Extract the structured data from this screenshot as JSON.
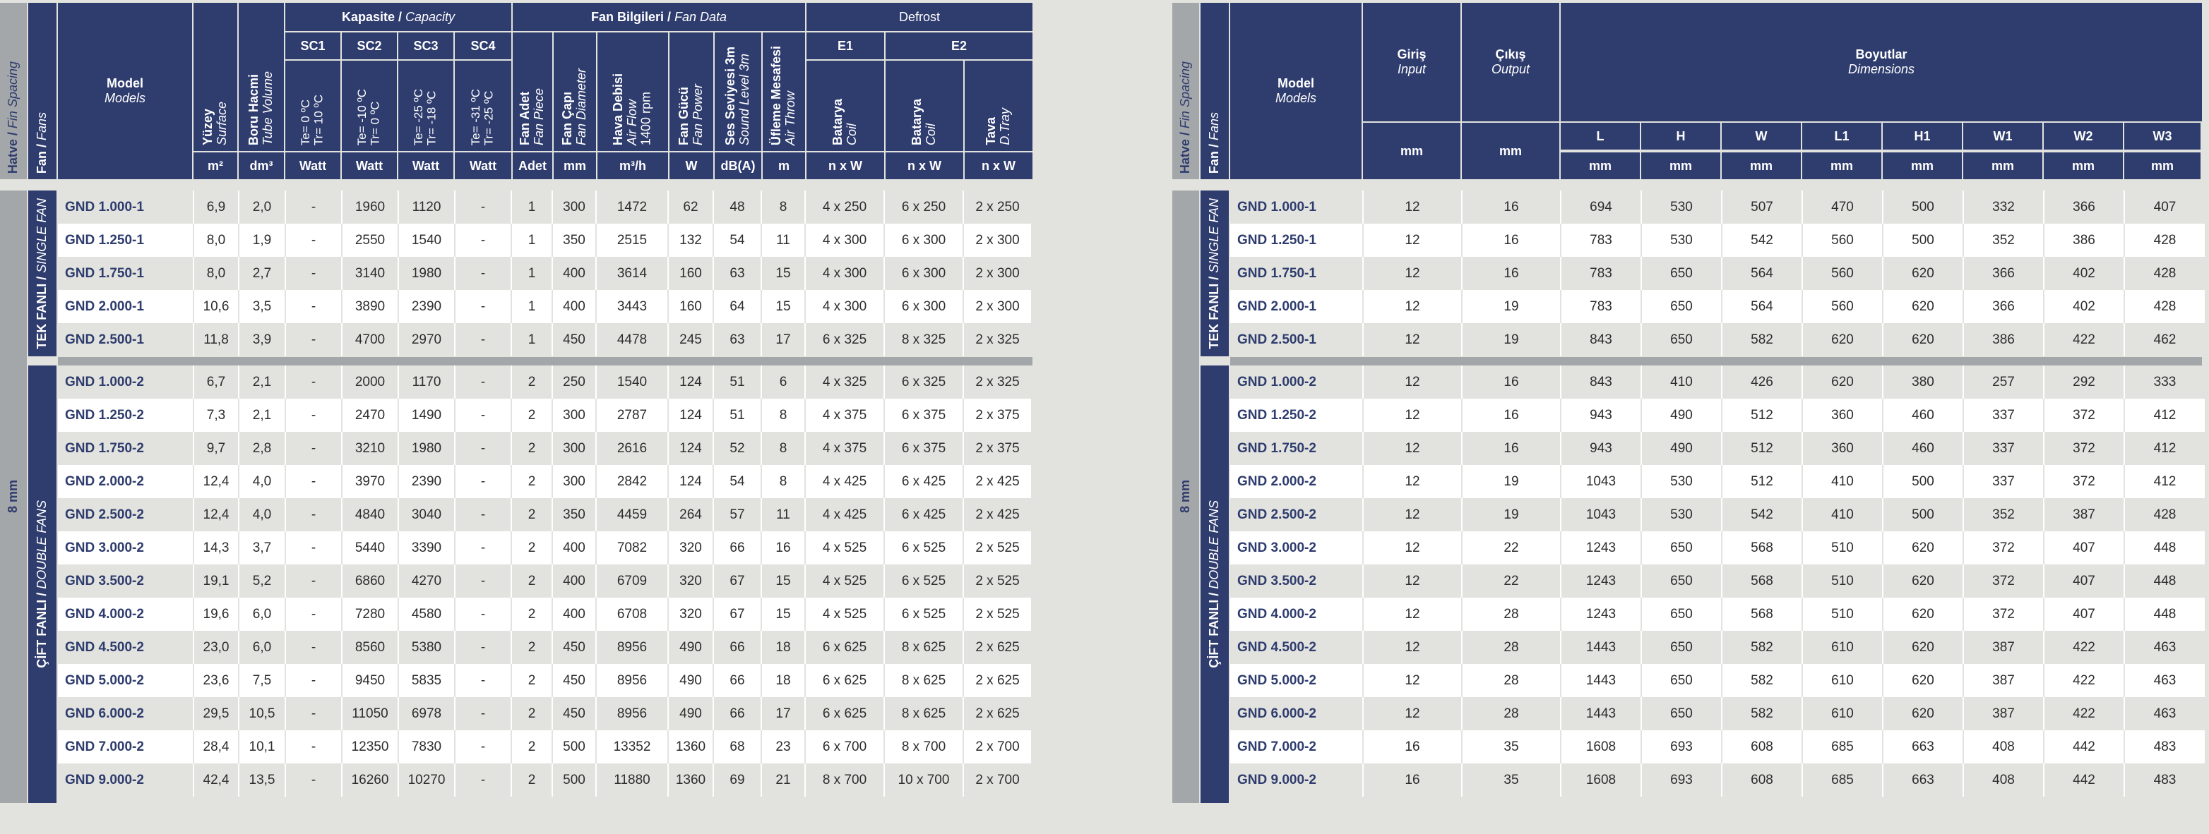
{
  "left": {
    "headers": {
      "fin_spacing": {
        "tr": "Hatve",
        "en": "Fin Spacing"
      },
      "fans": {
        "tr": "Fan",
        "en": "Fans"
      },
      "model": {
        "tr": "Model",
        "en": "Models"
      },
      "surface": {
        "tr": "Yüzey",
        "en": "Surface",
        "unit": "m²"
      },
      "tube_volume": {
        "tr": "Boru Hacmi",
        "en": "Tube Volume",
        "unit": "dm³"
      },
      "capacity": {
        "tr": "Kapasite",
        "en": "Capacity"
      },
      "fan_data": {
        "tr": "Fan Bilgileri",
        "en": "Fan Data"
      },
      "defrost": "Defrost",
      "sc": [
        {
          "label": "SC1",
          "te": "Te= 0 ºC",
          "tr": "Tr= 10 ºC",
          "unit": "Watt"
        },
        {
          "label": "SC2",
          "te": "Te= -10 ºC",
          "tr": "Tr= 0 ºC",
          "unit": "Watt"
        },
        {
          "label": "SC3",
          "te": "Te= -25 ºC",
          "tr": "Tr= -18 ºC",
          "unit": "Watt"
        },
        {
          "label": "SC4",
          "te": "Te= -31 ºC",
          "tr": "Tr= -25 ºC",
          "unit": "Watt"
        }
      ],
      "fan_cols": [
        {
          "tr": "Fan Adet",
          "en": "Fan Piece",
          "unit": "Adet"
        },
        {
          "tr": "Fan Çapı",
          "en": "Fan Diameter",
          "unit": "mm"
        },
        {
          "tr": "Hava Debisi",
          "en": "Air Flow",
          "en2": "1400 rpm",
          "unit": "m³/h"
        },
        {
          "tr": "Fan Gücü",
          "en": "Fan Power",
          "unit": "W"
        },
        {
          "tr": "Ses Seviyesi 3m",
          "en": "Sound Level 3m",
          "unit": "dB(A)"
        },
        {
          "tr": "Üfleme Mesafesi",
          "en": "Air Throw",
          "unit": "m"
        }
      ],
      "e1": "E1",
      "e2": "E2",
      "defrost_cols": [
        {
          "tr": "Batarya",
          "en": "Coil",
          "unit": "n x W"
        },
        {
          "tr": "Batarya",
          "en": "Coil",
          "unit": "n x W"
        },
        {
          "tr": "Tava",
          "en": "D.Tray",
          "unit": "n x W"
        }
      ]
    },
    "fin_spacing_value": "8 mm",
    "single_fan_label": {
      "tr": "TEK FANLI",
      "en": "SINGLE FAN"
    },
    "double_fan_label": {
      "tr": "ÇİFT FANLI",
      "en": "DOUBLE FANS"
    },
    "single_rows": [
      [
        "GND 1.000-1",
        "6,9",
        "2,0",
        "-",
        "1960",
        "1120",
        "-",
        "1",
        "300",
        "1472",
        "62",
        "48",
        "8",
        "4 x 250",
        "6 x 250",
        "2 x 250"
      ],
      [
        "GND 1.250-1",
        "8,0",
        "1,9",
        "-",
        "2550",
        "1540",
        "-",
        "1",
        "350",
        "2515",
        "132",
        "54",
        "11",
        "4 x 300",
        "6 x 300",
        "2 x 300"
      ],
      [
        "GND 1.750-1",
        "8,0",
        "2,7",
        "-",
        "3140",
        "1980",
        "-",
        "1",
        "400",
        "3614",
        "160",
        "63",
        "15",
        "4 x 300",
        "6 x 300",
        "2 x 300"
      ],
      [
        "GND 2.000-1",
        "10,6",
        "3,5",
        "-",
        "3890",
        "2390",
        "-",
        "1",
        "400",
        "3443",
        "160",
        "64",
        "15",
        "4 x 300",
        "6 x 300",
        "2 x 300"
      ],
      [
        "GND 2.500-1",
        "11,8",
        "3,9",
        "-",
        "4700",
        "2970",
        "-",
        "1",
        "450",
        "4478",
        "245",
        "63",
        "17",
        "6 x 325",
        "8 x 325",
        "2 x 325"
      ]
    ],
    "double_rows": [
      [
        "GND 1.000-2",
        "6,7",
        "2,1",
        "-",
        "2000",
        "1170",
        "-",
        "2",
        "250",
        "1540",
        "124",
        "51",
        "6",
        "4 x 325",
        "6 x 325",
        "2 x 325"
      ],
      [
        "GND 1.250-2",
        "7,3",
        "2,1",
        "-",
        "2470",
        "1490",
        "-",
        "2",
        "300",
        "2787",
        "124",
        "51",
        "8",
        "4 x 375",
        "6 x 375",
        "2 x 375"
      ],
      [
        "GND 1.750-2",
        "9,7",
        "2,8",
        "-",
        "3210",
        "1980",
        "-",
        "2",
        "300",
        "2616",
        "124",
        "52",
        "8",
        "4 x 375",
        "6 x 375",
        "2 x 375"
      ],
      [
        "GND 2.000-2",
        "12,4",
        "4,0",
        "-",
        "3970",
        "2390",
        "-",
        "2",
        "300",
        "2842",
        "124",
        "54",
        "8",
        "4 x 425",
        "6 x 425",
        "2 x 425"
      ],
      [
        "GND 2.500-2",
        "12,4",
        "4,0",
        "-",
        "4840",
        "3040",
        "-",
        "2",
        "350",
        "4459",
        "264",
        "57",
        "11",
        "4 x 425",
        "6 x 425",
        "2 x 425"
      ],
      [
        "GND 3.000-2",
        "14,3",
        "3,7",
        "-",
        "5440",
        "3390",
        "-",
        "2",
        "400",
        "7082",
        "320",
        "66",
        "16",
        "4 x 525",
        "6 x 525",
        "2 x 525"
      ],
      [
        "GND 3.500-2",
        "19,1",
        "5,2",
        "-",
        "6860",
        "4270",
        "-",
        "2",
        "400",
        "6709",
        "320",
        "67",
        "15",
        "4 x 525",
        "6 x 525",
        "2 x 525"
      ],
      [
        "GND 4.000-2",
        "19,6",
        "6,0",
        "-",
        "7280",
        "4580",
        "-",
        "2",
        "400",
        "6708",
        "320",
        "67",
        "15",
        "4 x 525",
        "6 x 525",
        "2 x 525"
      ],
      [
        "GND 4.500-2",
        "23,0",
        "6,0",
        "-",
        "8560",
        "5380",
        "-",
        "2",
        "450",
        "8956",
        "490",
        "66",
        "18",
        "6 x 625",
        "8 x 625",
        "2 x 625"
      ],
      [
        "GND 5.000-2",
        "23,6",
        "7,5",
        "-",
        "9450",
        "5835",
        "-",
        "2",
        "450",
        "8956",
        "490",
        "66",
        "18",
        "6 x 625",
        "8 x 625",
        "2 x 625"
      ],
      [
        "GND 6.000-2",
        "29,5",
        "10,5",
        "-",
        "11050",
        "6978",
        "-",
        "2",
        "450",
        "8956",
        "490",
        "66",
        "17",
        "6 x 625",
        "8 x 625",
        "2 x 625"
      ],
      [
        "GND 7.000-2",
        "28,4",
        "10,1",
        "-",
        "12350",
        "7830",
        "-",
        "2",
        "500",
        "13352",
        "1360",
        "68",
        "23",
        "6 x 700",
        "8 x 700",
        "2 x 700"
      ],
      [
        "GND 9.000-2",
        "42,4",
        "13,5",
        "-",
        "16260",
        "10270",
        "-",
        "2",
        "500",
        "11880",
        "1360",
        "69",
        "21",
        "8 x 700",
        "10 x 700",
        "2 x 700"
      ]
    ]
  },
  "right": {
    "headers": {
      "fin_spacing": {
        "tr": "Hatve",
        "en": "Fin Spacing"
      },
      "fans": {
        "tr": "Fan",
        "en": "Fans"
      },
      "model": {
        "tr": "Model",
        "en": "Models"
      },
      "input": {
        "tr": "Giriş",
        "en": "Input",
        "unit": "mm"
      },
      "output": {
        "tr": "Çıkış",
        "en": "Output",
        "unit": "mm"
      },
      "dimensions": {
        "tr": "Boyutlar",
        "en": "Dimensions"
      },
      "dims": [
        "L",
        "H",
        "W",
        "L1",
        "H1",
        "W1",
        "W2",
        "W3"
      ],
      "dim_unit": "mm"
    },
    "fin_spacing_value": "8 mm",
    "single_fan_label": {
      "tr": "TEK FANLI",
      "en": "SINGLE FAN"
    },
    "double_fan_label": {
      "tr": "ÇİFT FANLI",
      "en": "DOUBLE FANS"
    },
    "single_rows": [
      [
        "GND 1.000-1",
        "12",
        "16",
        "694",
        "530",
        "507",
        "470",
        "500",
        "332",
        "366",
        "407"
      ],
      [
        "GND 1.250-1",
        "12",
        "16",
        "783",
        "530",
        "542",
        "560",
        "500",
        "352",
        "386",
        "428"
      ],
      [
        "GND 1.750-1",
        "12",
        "16",
        "783",
        "650",
        "564",
        "560",
        "620",
        "366",
        "402",
        "428"
      ],
      [
        "GND 2.000-1",
        "12",
        "19",
        "783",
        "650",
        "564",
        "560",
        "620",
        "366",
        "402",
        "428"
      ],
      [
        "GND 2.500-1",
        "12",
        "19",
        "843",
        "650",
        "582",
        "620",
        "620",
        "386",
        "422",
        "462"
      ]
    ],
    "double_rows": [
      [
        "GND 1.000-2",
        "12",
        "16",
        "843",
        "410",
        "426",
        "620",
        "380",
        "257",
        "292",
        "333"
      ],
      [
        "GND 1.250-2",
        "12",
        "16",
        "943",
        "490",
        "512",
        "360",
        "460",
        "337",
        "372",
        "412"
      ],
      [
        "GND 1.750-2",
        "12",
        "16",
        "943",
        "490",
        "512",
        "360",
        "460",
        "337",
        "372",
        "412"
      ],
      [
        "GND 2.000-2",
        "12",
        "19",
        "1043",
        "530",
        "512",
        "410",
        "500",
        "337",
        "372",
        "412"
      ],
      [
        "GND 2.500-2",
        "12",
        "19",
        "1043",
        "530",
        "542",
        "410",
        "500",
        "352",
        "387",
        "428"
      ],
      [
        "GND 3.000-2",
        "12",
        "22",
        "1243",
        "650",
        "568",
        "510",
        "620",
        "372",
        "407",
        "448"
      ],
      [
        "GND 3.500-2",
        "12",
        "22",
        "1243",
        "650",
        "568",
        "510",
        "620",
        "372",
        "407",
        "448"
      ],
      [
        "GND 4.000-2",
        "12",
        "28",
        "1243",
        "650",
        "568",
        "510",
        "620",
        "372",
        "407",
        "448"
      ],
      [
        "GND 4.500-2",
        "12",
        "28",
        "1443",
        "650",
        "582",
        "610",
        "620",
        "387",
        "422",
        "463"
      ],
      [
        "GND 5.000-2",
        "12",
        "28",
        "1443",
        "650",
        "582",
        "610",
        "620",
        "387",
        "422",
        "463"
      ],
      [
        "GND 6.000-2",
        "12",
        "28",
        "1443",
        "650",
        "582",
        "610",
        "620",
        "387",
        "422",
        "463"
      ],
      [
        "GND 7.000-2",
        "16",
        "35",
        "1608",
        "693",
        "608",
        "685",
        "663",
        "408",
        "442",
        "483"
      ],
      [
        "GND 9.000-2",
        "16",
        "35",
        "1608",
        "693",
        "608",
        "685",
        "663",
        "408",
        "442",
        "483"
      ]
    ]
  }
}
